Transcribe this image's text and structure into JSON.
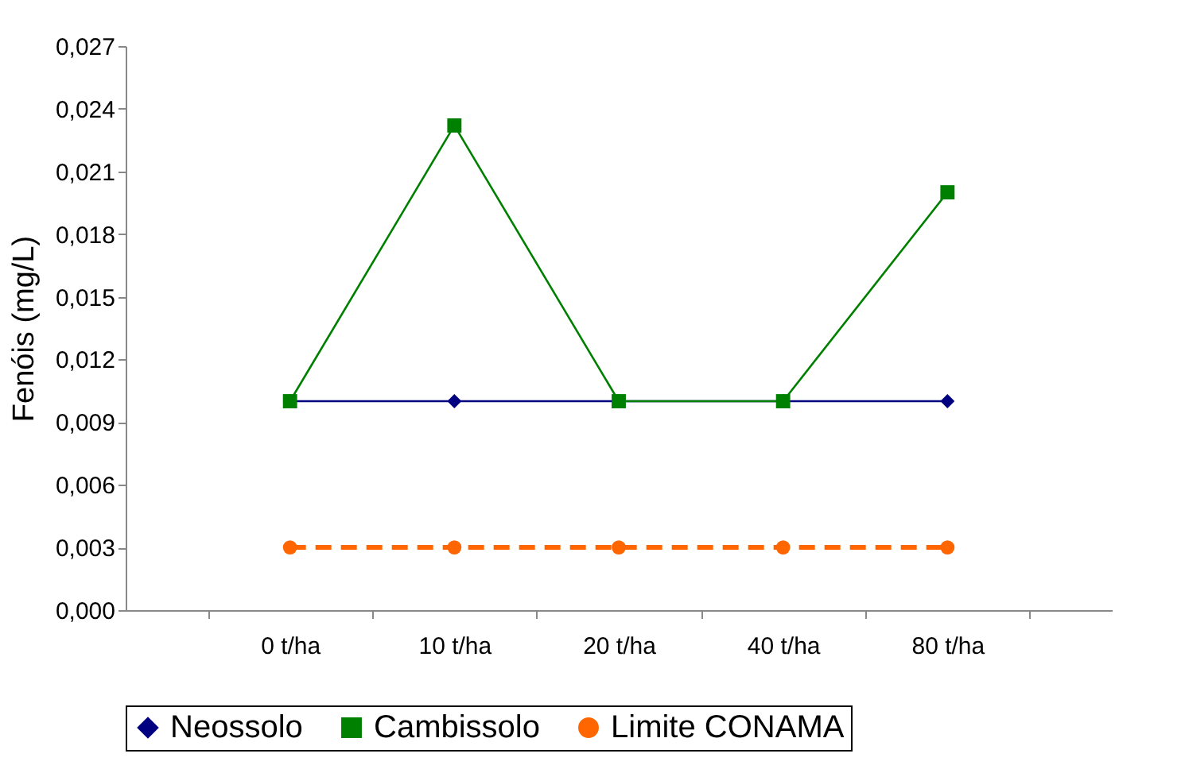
{
  "chart_data": {
    "type": "line",
    "ylabel": "Fenóis  (mg/L)",
    "categories": [
      "0 t/ha",
      "10 t/ha",
      "20 t/ha",
      "40 t/ha",
      "80 t/ha"
    ],
    "series": [
      {
        "name": "Neossolo",
        "color": "#000080",
        "values": [
          0.01,
          0.01,
          0.01,
          0.01,
          0.01
        ],
        "marker": "diamond",
        "line_style": "solid"
      },
      {
        "name": "Cambissolo",
        "color": "#008000",
        "values": [
          0.01,
          0.0232,
          0.01,
          0.01,
          0.02
        ],
        "marker": "square",
        "line_style": "solid"
      },
      {
        "name": "Limite CONAMA",
        "color": "#ff6600",
        "values": [
          0.003,
          0.003,
          0.003,
          0.003,
          0.003
        ],
        "marker": "circle",
        "line_style": "dashed"
      }
    ],
    "ylim": [
      0,
      0.027
    ],
    "yticks": [
      {
        "value": 0,
        "label": "0,000"
      },
      {
        "value": 0.003,
        "label": "0,003"
      },
      {
        "value": 0.006,
        "label": "0,006"
      },
      {
        "value": 0.009,
        "label": "0,009"
      },
      {
        "value": 0.012,
        "label": "0,012"
      },
      {
        "value": 0.015,
        "label": "0,015"
      },
      {
        "value": 0.018,
        "label": "0,018"
      },
      {
        "value": 0.021,
        "label": "0,021"
      },
      {
        "value": 0.024,
        "label": "0,024"
      },
      {
        "value": 0.027,
        "label": "0,027"
      }
    ],
    "grid": false,
    "legend": "bottom"
  }
}
